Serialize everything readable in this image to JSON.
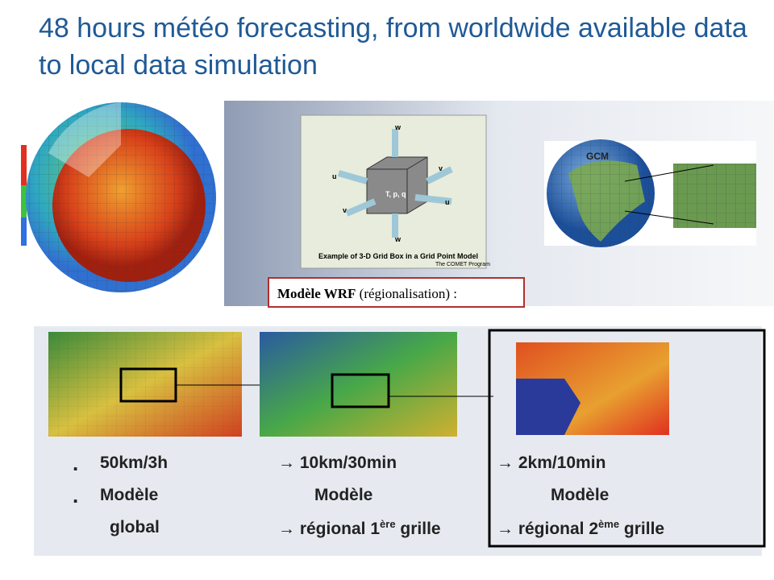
{
  "title": "48 hours météo forecasting, from worldwide available data to local data simulation",
  "figures": {
    "gridbox": {
      "labels": [
        "w",
        "v",
        "u",
        "u",
        "v",
        "w",
        "T, p, q"
      ],
      "caption": "Example of 3-D Grid Box in a Grid Point Model",
      "credit": "The COMET Program"
    },
    "gcm_label": "GCM",
    "wrf_caption": {
      "bold": "Modèle WRF",
      "rest": "(régionalisation) :"
    }
  },
  "table": {
    "rows": [
      [
        {
          "text": "50km/3h"
        },
        {
          "text": "→ 10km/30min"
        },
        {
          "text": "→ 2km/10min"
        }
      ],
      [
        {
          "text": "Modèle"
        },
        {
          "text": "Modèle"
        },
        {
          "text": "Modèle"
        }
      ],
      [
        {
          "text": "global"
        },
        {
          "text": "→ régional 1",
          "sup": "ère",
          "after": " grille"
        },
        {
          "text": "→ régional 2",
          "sup": "ème",
          "after": " grille"
        }
      ]
    ]
  }
}
